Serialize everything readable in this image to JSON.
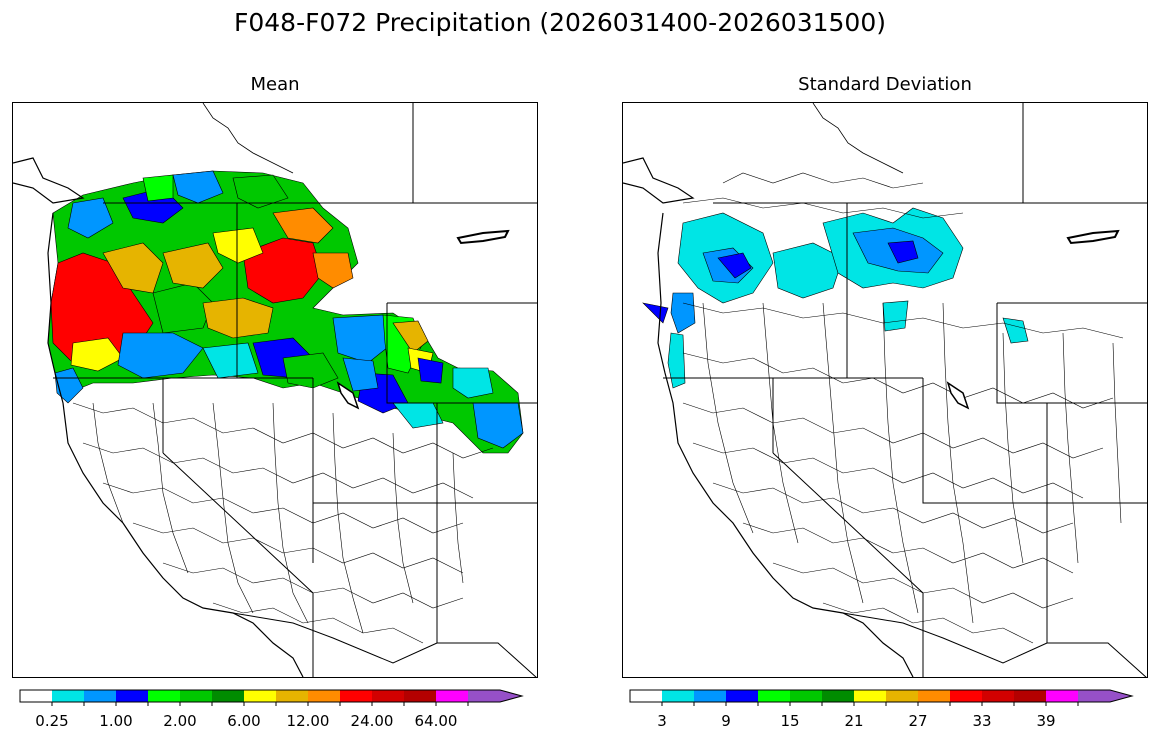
{
  "title": "F048-F072 Precipitation (2026031400-2026031500)",
  "panels": {
    "mean": {
      "title": "Mean"
    },
    "sd": {
      "title": "Standard Deviation"
    }
  },
  "colorbar_colors": [
    "#ffffff",
    "#00e5e5",
    "#0096ff",
    "#0000ff",
    "#00ff00",
    "#00c800",
    "#008c00",
    "#ffff00",
    "#e6b400",
    "#ff8c00",
    "#ff0000",
    "#d20000",
    "#b40000",
    "#ff00ff",
    "#9650c8"
  ],
  "colorbars": {
    "mean": {
      "labels": [
        "0.25",
        "1.00",
        "2.00",
        "6.00",
        "12.00",
        "24.00",
        "64.00"
      ],
      "label_boundaries": [
        1,
        3,
        5,
        7,
        9,
        11,
        13
      ]
    },
    "sd": {
      "labels": [
        "3",
        "9",
        "15",
        "21",
        "27",
        "33",
        "39"
      ],
      "label_boundaries": [
        1,
        3,
        5,
        7,
        9,
        11,
        13
      ]
    }
  },
  "map_region": "Western United States watershed basins (HUC boundaries) with state borders and coastline"
}
